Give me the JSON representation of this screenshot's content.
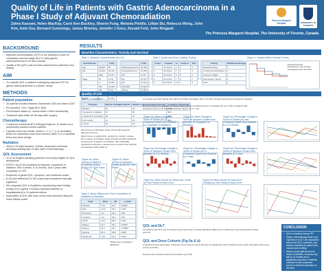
{
  "header": {
    "title": "Quality of Life in Patients with Gastric Adenocarcinoma in a Phase I Study of Adjuvant Chemoradiation",
    "authors": "Zahra Kassam, Helen MacKay, Carol Ann Buckley, Sharon Fung, Melania Pintilie, Lillian Siu, Rebecca Wong, John Kim, Amit Oza, Bernard Cummings, James Brierley, Jennifer J Knox, Ronald Feld, John Ringash",
    "affiliation": "The Princess Margaret Hospital, The University of Toronto, Canada",
    "logo1_text": "Princess Margaret Hospital",
    "logo2_text": "UNIVERSITY OF TORONTO"
  },
  "left": {
    "background": {
      "heading": "BACKGROUND",
      "bullets": [
        "Adjuvant chemoradiation (CRT) is the standard of care for completely resected stage IB to IV (M0) gastric adenocarcinoma in US and Canada",
        "Quality of life (QOL) has not been assessed for patients in this setting"
      ]
    },
    "aim": {
      "heading": "AIM",
      "bullets": [
        "To evaluate QOL in patients undergoing adjuvant CRT for gastric adenocarcinoma in a phase I study"
      ]
    },
    "methods": {
      "heading": "METHODS",
      "population": {
        "heading": "Patient population",
        "bullets": [
          "34 patients enrolled between September 2002 and March 2007",
          "R0 resection, UICC stage IB-IV (M0)",
          "Performance status ≤2, caloric intake ≥1500 calories/day",
          "Treatment start within 28-98 days after surgery"
        ]
      },
      "chemo": {
        "heading": "Chemotherapy",
        "bullets": [
          "Continuous infusional 5FU 200mg/m2/day for 12 weeks via a peripherally inserted central catheter",
          "Cisplatin every two weeks, weeks 1, 3, 5, 7, 9, in escalating doses for successive dose level cohorts (Table 2) in a standard three plus three design"
        ]
      },
      "radiation": {
        "heading": "Radiation",
        "bullets": [
          "45Gy in 25 daily fractions, 5 fields, sequential conformal technique starting day 14 after start of chemotherapy"
        ]
      },
      "qol": {
        "heading": "QOL Assessment",
        "bullets": [
          "32 of 34 English speaking patients in the study eligible for QOL assessment",
          "EORTC QLQC30 completed at baseline, completion of radiation, then 4 weeks, 6-12 months, and 2 years after completion of CRT",
          "Endpoints of global QOL, symptom, and functional scales",
          "A 10-point difference (0-100 scale) was considered clinically significant",
          "We compared QOL in 8 patients experiencing dose limiting toxicity (DLT) (grade 3 toxicity requiring treatment or hospitalization) to 24 patients without",
          "Association of QOL with dose cohort was assessed using the linear effects model"
        ]
      }
    }
  },
  "results": {
    "heading": "RESULTS",
    "bar1": "Baseline Characteristics, Toxicity and Survival",
    "bar2": "Quality of Life",
    "table1": {
      "caption": "Table 1: Baseline Characteristics (N=34)",
      "headers": [
        "Characteristic",
        "",
        "N (%)"
      ],
      "rows": [
        [
          "Age",
          "Median",
          "58"
        ],
        [
          "Sex",
          "Female",
          "10 (29)"
        ],
        [
          "",
          "Male",
          "24 (71)"
        ],
        [
          "Stage",
          "IB",
          "4 (12)"
        ],
        [
          "",
          "II",
          "10 (29)"
        ],
        [
          "",
          "IIIA",
          "12 (35)"
        ],
        [
          "",
          "IIIB",
          "4 (12)"
        ],
        [
          "",
          "IV",
          "4 (12)"
        ],
        [
          "ECOG",
          "0",
          "16 (47)"
        ],
        [
          "",
          "1",
          "18 (53)"
        ]
      ]
    },
    "table1b": {
      "headers": [
        "",
        "N (%)"
      ],
      "rows": [
        [
          "Partial gastrectomy",
          "22 (65)"
        ],
        [
          "Total gastrectomy",
          "12 (35)"
        ],
        [
          "D0",
          "4 (12)"
        ],
        [
          "D1",
          "16 (47)"
        ],
        [
          "D2",
          "14 (41)"
        ],
        [
          "Intestinal",
          "15 (44)"
        ],
        [
          "Diffuse",
          "19 (56)"
        ]
      ]
    },
    "table2": {
      "caption": "Table 2: Acute and Dose Limiting Toxicity",
      "headers": [
        "Cohort",
        "Cisplatin",
        "N",
        "Grade 3+",
        "DLT"
      ],
      "rows": [
        [
          "1",
          "20 mg/m2",
          "6",
          "3",
          "0"
        ],
        [
          "2",
          "30 mg/m2",
          "7",
          "4",
          "1"
        ],
        [
          "3",
          "40 mg/m2",
          "6",
          "5",
          "2"
        ],
        [
          "4",
          "50 mg/m2",
          "7",
          "6",
          "2"
        ],
        [
          "5",
          "60 mg/m2",
          "8",
          "7",
          "3"
        ]
      ]
    },
    "table2b": {
      "headers": [
        "Toxicity",
        "Site/Nonhematological"
      ],
      "rows": [
        [
          "Nausea/vomiting",
          "7"
        ],
        [
          "Vomiting and dehydration",
          "4"
        ],
        [
          "Anorexia / fatigue",
          "3"
        ],
        [
          "Neutropenia / Sepsis",
          "2"
        ],
        [
          "Other",
          "2"
        ]
      ]
    },
    "surv": {
      "caption": "Figure 1: Kaplan-Meier Survival Curves",
      "legend": [
        "Overall Survival",
        "Progression free survival",
        "Progression-free and DFS"
      ]
    },
    "table3": {
      "caption": "Table 3: Compliance",
      "headers": [
        "Timepoint",
        "Number of Eligible Patients",
        "Number of Questionnaires Received",
        "Compliance Percentage"
      ],
      "rows": [
        [
          "Baseline",
          "32",
          "32",
          "100%"
        ],
        [
          "Completion of radiation",
          "31",
          "29",
          "94%"
        ],
        [
          "4 weeks post completion",
          "29",
          "27",
          "93%"
        ],
        [
          "6-12 months",
          "24",
          "20",
          "83%"
        ],
        [
          "2 years",
          "16",
          "13",
          "81%"
        ]
      ]
    },
    "qol_text1": "Mean scores of all scales shown across all timepoints (figures 2a and b)",
    "qol_text2": "Mean scores on global QOL, social role, emotion, nausea and vomiting, and fatigue scales showed clinically significant worsening at completion of radiation, with statistically significant worsening in nausea alone as well as the physical and appetite scales (Table 4)",
    "qol_text3": "At 4 weeks post CRT global QOL (48.8 p=0.0002) and fatigue (48.7 p=0.001) remained depressed compared to baseline",
    "qol_text4": "By 6-12 months, no subscale recovered difference from baseline scores on average (but up to 40% of patients had worsened scores on at least one subscale (Figure 3a, b, c, d))",
    "fig2a": "Figure 2a: Mean Change in Score of Global QoL & Functional Scales from Baseline to Completion of Radiation",
    "fig2b": "Figure 2b: Mean Change in Score of Symptom Scales from Baseline to Completion of Radiation",
    "fig3a": "Figure 3a: Percentage Change in Score of Global QoL and Functional Scales from Baseline to 4-12 Months",
    "fig3b": "Figure 3b: Percentage Change in Score of Symptom Scales from Baseline to 6-12 Months",
    "fig3c": "Figure 3c: Percentage Change in Score of Global QoL & Functional Scales from Baseline to 2 Years",
    "fig3d": "Figure 3d: Percentage Change in Score of Symptom Scales from Baseline to 2 Years",
    "fig4a": "Figure 4a: Mean Scores of Global & Functional Scales Across All Time Points",
    "fig4b": "Figure 4b: Mean Scores of Symptom Scales Across All Time Points",
    "fig5a": "Figure 5a: Mean Scores for Global QoL Scale by Time Points & Dose Level",
    "fig5b": "Figure 5b: Mean Scores for Nausea & Vomiting by Time Points & Dose Level",
    "table4": {
      "caption": "Table 4: Mean Differences From Completion of Radiation to Baseline",
      "headers": [
        "Scale",
        "Mean",
        "SD",
        "p-value"
      ],
      "rows": [
        [
          "Physical",
          "-14.1",
          "20.1",
          "0.0003*"
        ],
        [
          "Role",
          "-21.6",
          "36.2",
          "0.002"
        ],
        [
          "Emotional",
          "-5.2",
          "16.0",
          "0.08"
        ],
        [
          "Cognitive",
          "-4.0",
          "18.4",
          "0.25"
        ],
        [
          "Social",
          "-16.0",
          "28.6",
          "0.005"
        ],
        [
          "Fatigue",
          "19.3",
          "26.3",
          "0.0004*"
        ],
        [
          "Nausea",
          "30.4",
          "33.1",
          "<0.0001*"
        ],
        [
          "Appetite",
          "25.9",
          "39.9",
          "0.001*"
        ],
        [
          "Global QoL",
          "-14.3",
          "23.2",
          "0.002"
        ]
      ],
      "note": "*Differences Considered Significant"
    },
    "qol_dlt": {
      "heading": "QOL and DLT",
      "bullets": [
        "For patients with DLT and no toxicity scores there was no clinical significant differences in global QoL and nausea and vomiting (p=0.07)"
      ]
    },
    "qol_dose": {
      "heading": "QOL and Dose Cohorts (Fig 5a & b)",
      "bullets": [
        "A significant linear association measured across all time points was seen for global QoL with increasing doses which associated with worse scores (p=0.007)",
        "Nausea and vomiting showed an association (p=0.08)"
      ]
    }
  },
  "conclusion": {
    "heading": "CONCLUSION",
    "bullets": [
      "QOL is impaired during CRT",
      "Higher chemotherapy doses and experience of DLT are associated with poorer QOL outcomes, see certain subscales for global QOL, nausea and vomiting",
      "While in most patients scores return to baseline, recovery may take 6-12 months and a significant proportion of patients continue to have worsened scores in selected subscales at this time"
    ]
  },
  "chart_data": [
    {
      "type": "line",
      "title": "Figure 1: Kaplan-Meier Survival Curves",
      "x": [
        0,
        12,
        24,
        36,
        48,
        60
      ],
      "series": [
        {
          "name": "Overall Survival",
          "values": [
            1.0,
            0.82,
            0.68,
            0.58,
            0.52,
            0.5
          ]
        },
        {
          "name": "Progression free survival",
          "values": [
            1.0,
            0.7,
            0.55,
            0.48,
            0.45,
            0.44
          ]
        }
      ],
      "ylim": [
        0,
        1
      ]
    },
    {
      "type": "bar",
      "title": "Figure 2a: Mean Change in Score of Global QoL & Functional Scales from Baseline to Completion of Radiation",
      "values": [
        -14,
        -22,
        -5,
        -4,
        -16,
        -14
      ],
      "ylim": [
        -30,
        10
      ]
    },
    {
      "type": "bar",
      "title": "Figure 2b: Mean Change in Score of Symptom Scales from Baseline to Completion of Radiation",
      "values": [
        19,
        30,
        5,
        10,
        26,
        4,
        3,
        2
      ],
      "ylim": [
        -10,
        40
      ]
    }
  ]
}
